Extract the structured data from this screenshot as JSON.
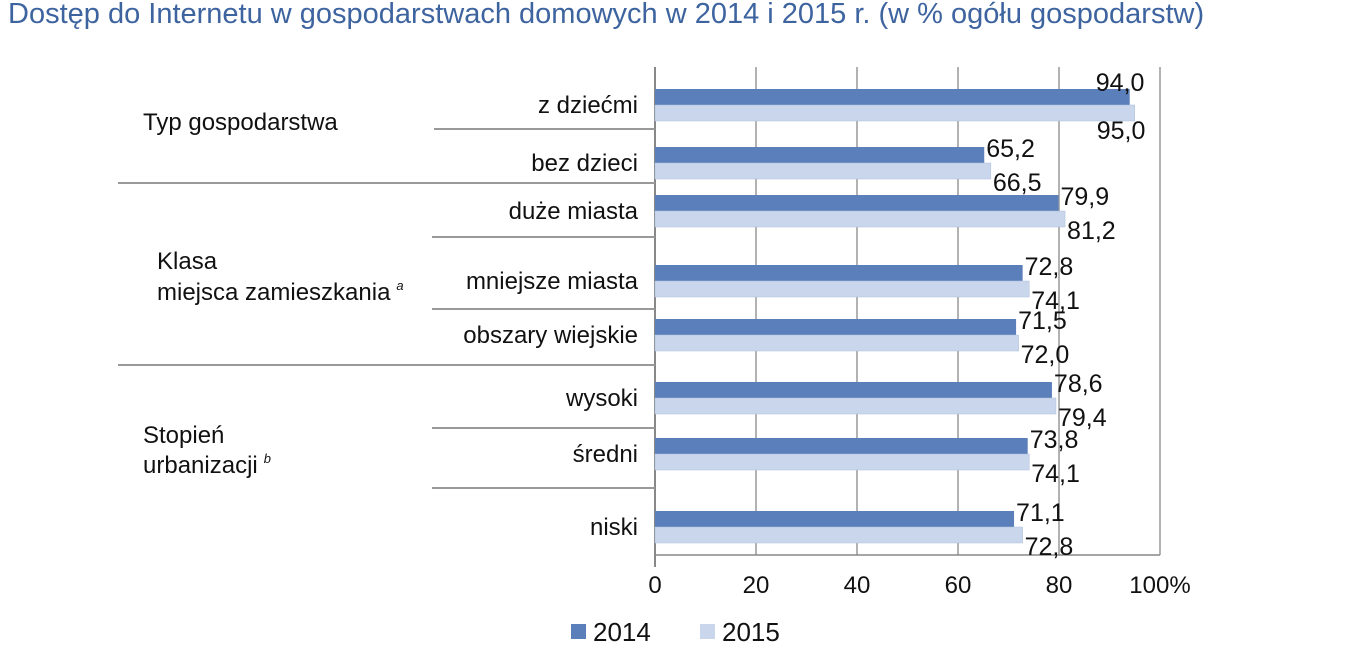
{
  "title": "Dostęp do Internetu w gospodarstwach domowych w 2014 i 2015 r. (w % ogółu gospodarstw)",
  "chart_data": {
    "type": "bar",
    "orientation": "horizontal",
    "title": "Dostęp do Internetu w gospodarstwach domowych w 2014 i 2015 r. (w % ogółu gospodarstw)",
    "groups": [
      {
        "label": "Typ gospodarstwa",
        "superscript": "",
        "categories": [
          "z dziećmi",
          "bez dzieci"
        ]
      },
      {
        "label": "Klasa miejsca zamieszkania",
        "superscript": "a",
        "categories": [
          "duże miasta",
          "mniejsze miasta",
          "obszary wiejskie"
        ]
      },
      {
        "label": "Stopień urbanizacji",
        "superscript": "b",
        "categories": [
          "wysoki",
          "średni",
          "niski"
        ]
      }
    ],
    "categories": [
      "z dziećmi",
      "bez dzieci",
      "duże miasta",
      "mniejsze miasta",
      "obszary wiejskie",
      "wysoki",
      "średni",
      "niski"
    ],
    "series": [
      {
        "name": "2014",
        "color": "#5b7fba",
        "values": [
          94.0,
          65.2,
          79.9,
          72.8,
          71.5,
          78.6,
          73.8,
          71.1
        ],
        "labels": [
          "94,0",
          "65,2",
          "79,9",
          "72,8",
          "71,5",
          "78,6",
          "73,8",
          "71,1"
        ]
      },
      {
        "name": "2015",
        "color": "#c9d6ec",
        "values": [
          95.0,
          66.5,
          81.2,
          74.1,
          72.0,
          79.4,
          74.1,
          72.8
        ],
        "labels": [
          "95,0",
          "66,5",
          "81,2",
          "74,1",
          "72,0",
          "79,4",
          "74,1",
          "72,8"
        ]
      }
    ],
    "xlim": [
      0,
      100
    ],
    "xticks": [
      0,
      20,
      40,
      60,
      80,
      100
    ],
    "xtick_labels": [
      "0",
      "20",
      "40",
      "60",
      "80",
      "100%"
    ],
    "grid": true,
    "legend_position": "bottom"
  }
}
